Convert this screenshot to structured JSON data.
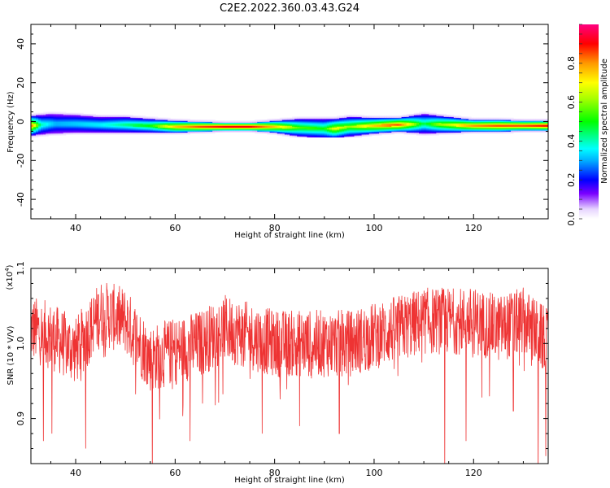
{
  "title": "C2E2.2022.360.03.43.G24",
  "colors": {
    "snr_line": "#ee3333",
    "axes": "#000000",
    "background": "#ffffff"
  },
  "chart_data": [
    {
      "type": "heatmap",
      "xlabel": "Height of straight line (km)",
      "ylabel": "Frequency (Hz)",
      "xlim": [
        31,
        135
      ],
      "ylim": [
        -50,
        50
      ],
      "x_ticks": [
        40,
        60,
        80,
        100,
        120
      ],
      "y_ticks": [
        -40,
        -20,
        0,
        20,
        40
      ],
      "colorbar": {
        "label": "Normalized spectral amplitude",
        "range": [
          0,
          1
        ],
        "ticks": [
          "0.0",
          "0.2",
          "0.4",
          "0.6",
          "0.8"
        ],
        "colormap": "rainbow (white-purple-blue-cyan-green-yellow-orange-red-magenta)"
      },
      "ridge_center_hz": [
        [
          31,
          -2
        ],
        [
          35,
          -1
        ],
        [
          40,
          -1
        ],
        [
          45,
          -1.5
        ],
        [
          50,
          -1.5
        ],
        [
          55,
          -2
        ],
        [
          60,
          -2.5
        ],
        [
          65,
          -2.5
        ],
        [
          70,
          -2.5
        ],
        [
          75,
          -2.5
        ],
        [
          80,
          -2.5
        ],
        [
          85,
          -3
        ],
        [
          90,
          -3.5
        ],
        [
          92,
          -3.5
        ],
        [
          95,
          -2.5
        ],
        [
          100,
          -2
        ],
        [
          105,
          -1.5
        ],
        [
          110,
          -1
        ],
        [
          115,
          -1.5
        ],
        [
          120,
          -2
        ],
        [
          125,
          -2
        ],
        [
          130,
          -2
        ],
        [
          135,
          -2
        ]
      ],
      "envelope_halfwidth_hz": [
        [
          31,
          5
        ],
        [
          35,
          5
        ],
        [
          40,
          4.5
        ],
        [
          45,
          4
        ],
        [
          50,
          4
        ],
        [
          55,
          3.5
        ],
        [
          60,
          3
        ],
        [
          65,
          2.5
        ],
        [
          70,
          2
        ],
        [
          75,
          2
        ],
        [
          80,
          3
        ],
        [
          85,
          4.5
        ],
        [
          90,
          5
        ],
        [
          95,
          5
        ],
        [
          100,
          4
        ],
        [
          105,
          3.5
        ],
        [
          110,
          5
        ],
        [
          115,
          4
        ],
        [
          120,
          3
        ],
        [
          125,
          3
        ],
        [
          130,
          2.5
        ],
        [
          135,
          2.5
        ]
      ],
      "ridge_amplitude": [
        [
          31,
          0.85
        ],
        [
          33,
          0.4
        ],
        [
          36,
          0.3
        ],
        [
          45,
          0.35
        ],
        [
          55,
          0.5
        ],
        [
          60,
          0.75
        ],
        [
          65,
          0.85
        ],
        [
          70,
          0.9
        ],
        [
          75,
          0.9
        ],
        [
          80,
          0.75
        ],
        [
          85,
          0.55
        ],
        [
          90,
          0.5
        ],
        [
          92,
          0.7
        ],
        [
          95,
          0.6
        ],
        [
          100,
          0.75
        ],
        [
          105,
          0.85
        ],
        [
          110,
          0.45
        ],
        [
          113,
          0.6
        ],
        [
          120,
          0.8
        ],
        [
          125,
          0.85
        ],
        [
          130,
          0.85
        ],
        [
          135,
          0.9
        ]
      ]
    },
    {
      "type": "line",
      "xlabel": "Height of straight line (km)",
      "ylabel": "SNR (10 * V/V)",
      "y_scale_label": "(x10",
      "y_scale_exponent": "4",
      "xlim": [
        31,
        135
      ],
      "ylim": [
        0.84,
        1.1
      ],
      "x_ticks": [
        40,
        60,
        80,
        100,
        120
      ],
      "y_ticks": [
        "0.9",
        "1.0",
        "1.1"
      ],
      "grid": false,
      "mean_profile": [
        [
          31,
          1.02
        ],
        [
          35,
          1.01
        ],
        [
          40,
          0.99
        ],
        [
          45,
          1.04
        ],
        [
          50,
          1.03
        ],
        [
          55,
          0.98
        ],
        [
          60,
          0.99
        ],
        [
          65,
          1.0
        ],
        [
          70,
          1.02
        ],
        [
          75,
          1.01
        ],
        [
          80,
          1.0
        ],
        [
          85,
          1.0
        ],
        [
          90,
          1.0
        ],
        [
          95,
          1.0
        ],
        [
          100,
          1.01
        ],
        [
          105,
          1.02
        ],
        [
          110,
          1.03
        ],
        [
          115,
          1.03
        ],
        [
          120,
          1.03
        ],
        [
          125,
          1.02
        ],
        [
          130,
          1.03
        ],
        [
          135,
          1.0
        ]
      ],
      "noise_amplitude": 0.045,
      "dips": [
        [
          33.5,
          0.87
        ],
        [
          35.2,
          0.88
        ],
        [
          42,
          0.86
        ],
        [
          55.4,
          0.82
        ],
        [
          63,
          0.87
        ],
        [
          65.5,
          0.92
        ],
        [
          77.5,
          0.88
        ],
        [
          85,
          0.89
        ],
        [
          93,
          0.88
        ],
        [
          114.2,
          0.83
        ],
        [
          118.5,
          0.87
        ],
        [
          128,
          0.91
        ],
        [
          133,
          0.82
        ],
        [
          134.5,
          0.85
        ]
      ]
    }
  ]
}
